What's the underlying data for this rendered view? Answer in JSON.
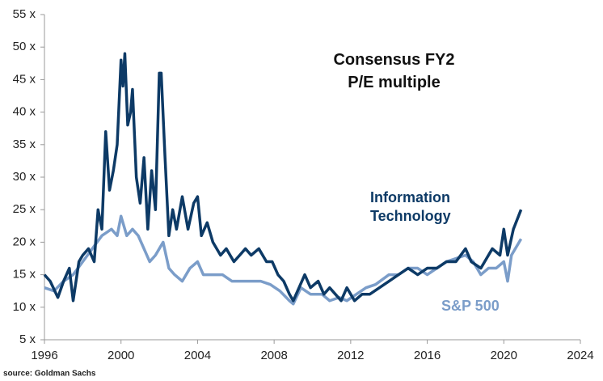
{
  "chart_data": {
    "type": "line",
    "title_lines": [
      "Consensus FY2",
      "P/E multiple"
    ],
    "source": "source: Goldman Sachs",
    "xlim": [
      1996,
      2024
    ],
    "xticks": [
      1996,
      2000,
      2004,
      2008,
      2012,
      2016,
      2020,
      2024
    ],
    "ylim": [
      5,
      55
    ],
    "yticks": [
      {
        "value": 5,
        "label": "5 x"
      },
      {
        "value": 10,
        "label": "10 x"
      },
      {
        "value": 15,
        "label": "15 x"
      },
      {
        "value": 20,
        "label": "20 x"
      },
      {
        "value": 25,
        "label": "25 x"
      },
      {
        "value": 30,
        "label": "30 x"
      },
      {
        "value": 35,
        "label": "35 x"
      },
      {
        "value": 40,
        "label": "40 x"
      },
      {
        "value": 45,
        "label": "45 x"
      },
      {
        "value": 50,
        "label": "50 x"
      },
      {
        "value": 55,
        "label": "55 x"
      }
    ],
    "series": [
      {
        "name": "Information Technology",
        "color": "#0d3a66",
        "x": [
          1996.0,
          1996.3,
          1996.7,
          1997.0,
          1997.3,
          1997.5,
          1997.8,
          1998.0,
          1998.3,
          1998.6,
          1998.8,
          1999.0,
          1999.2,
          1999.4,
          1999.6,
          1999.8,
          2000.0,
          2000.1,
          2000.2,
          2000.35,
          2000.5,
          2000.6,
          2000.8,
          2001.0,
          2001.2,
          2001.4,
          2001.6,
          2001.8,
          2002.0,
          2002.1,
          2002.3,
          2002.5,
          2002.7,
          2002.9,
          2003.2,
          2003.5,
          2003.8,
          2004.0,
          2004.2,
          2004.5,
          2004.8,
          2005.2,
          2005.5,
          2005.9,
          2006.2,
          2006.5,
          2006.8,
          2007.2,
          2007.6,
          2007.9,
          2008.2,
          2008.5,
          2008.8,
          2009.0,
          2009.3,
          2009.6,
          2009.9,
          2010.3,
          2010.6,
          2010.9,
          2011.2,
          2011.5,
          2011.8,
          2012.2,
          2012.6,
          2013.0,
          2013.5,
          2014.0,
          2014.5,
          2015.0,
          2015.5,
          2016.0,
          2016.5,
          2017.0,
          2017.5,
          2018.0,
          2018.3,
          2018.8,
          2019.0,
          2019.4,
          2019.8,
          2020.0,
          2020.2,
          2020.5,
          2020.9
        ],
        "values": [
          15,
          14,
          11.5,
          14,
          16,
          11,
          17,
          18,
          19,
          17,
          25,
          22,
          37,
          28,
          31,
          35,
          48,
          44,
          49,
          38,
          40,
          43.5,
          30,
          26,
          33,
          22,
          31,
          25,
          46,
          46,
          33,
          21,
          25,
          22,
          27,
          22,
          26,
          27,
          21,
          23,
          20,
          18,
          19,
          17,
          18,
          19,
          18,
          19,
          17,
          17,
          15,
          14,
          12,
          11,
          13,
          15,
          13,
          14,
          12,
          13,
          12,
          11,
          13,
          11,
          12,
          12,
          13,
          14,
          15,
          16,
          15,
          16,
          16,
          17,
          17,
          19,
          17,
          16,
          17,
          19,
          18,
          22,
          18,
          22,
          25
        ]
      },
      {
        "name": "S&P 500",
        "color": "#7b9dc9",
        "x": [
          1996.0,
          1996.5,
          1997.0,
          1997.5,
          1998.0,
          1998.5,
          1999.0,
          1999.5,
          1999.8,
          2000.0,
          2000.3,
          2000.6,
          2000.9,
          2001.2,
          2001.5,
          2001.8,
          2002.0,
          2002.2,
          2002.5,
          2002.8,
          2003.2,
          2003.6,
          2004.0,
          2004.3,
          2004.8,
          2005.3,
          2005.8,
          2006.3,
          2006.8,
          2007.3,
          2007.8,
          2008.3,
          2008.8,
          2009.0,
          2009.4,
          2009.9,
          2010.5,
          2010.9,
          2011.4,
          2011.8,
          2012.3,
          2012.8,
          2013.3,
          2014.0,
          2014.5,
          2015.0,
          2015.5,
          2016.0,
          2016.5,
          2017.0,
          2017.5,
          2018.0,
          2018.4,
          2018.8,
          2019.2,
          2019.6,
          2020.0,
          2020.2,
          2020.4,
          2020.9
        ],
        "values": [
          13,
          12.5,
          14,
          15,
          17,
          19,
          21,
          22,
          21,
          24,
          21,
          22,
          21,
          19,
          17,
          18,
          19,
          20,
          16,
          15,
          14,
          16,
          17,
          15,
          15,
          15,
          14,
          14,
          14,
          14,
          13.5,
          12.5,
          11,
          10.5,
          13,
          12,
          12,
          11,
          11.5,
          11,
          12,
          13,
          13.5,
          15,
          15,
          16,
          16,
          15,
          16,
          17,
          17.5,
          18,
          17,
          15,
          16,
          16,
          17,
          14,
          18,
          20.5
        ]
      }
    ]
  }
}
